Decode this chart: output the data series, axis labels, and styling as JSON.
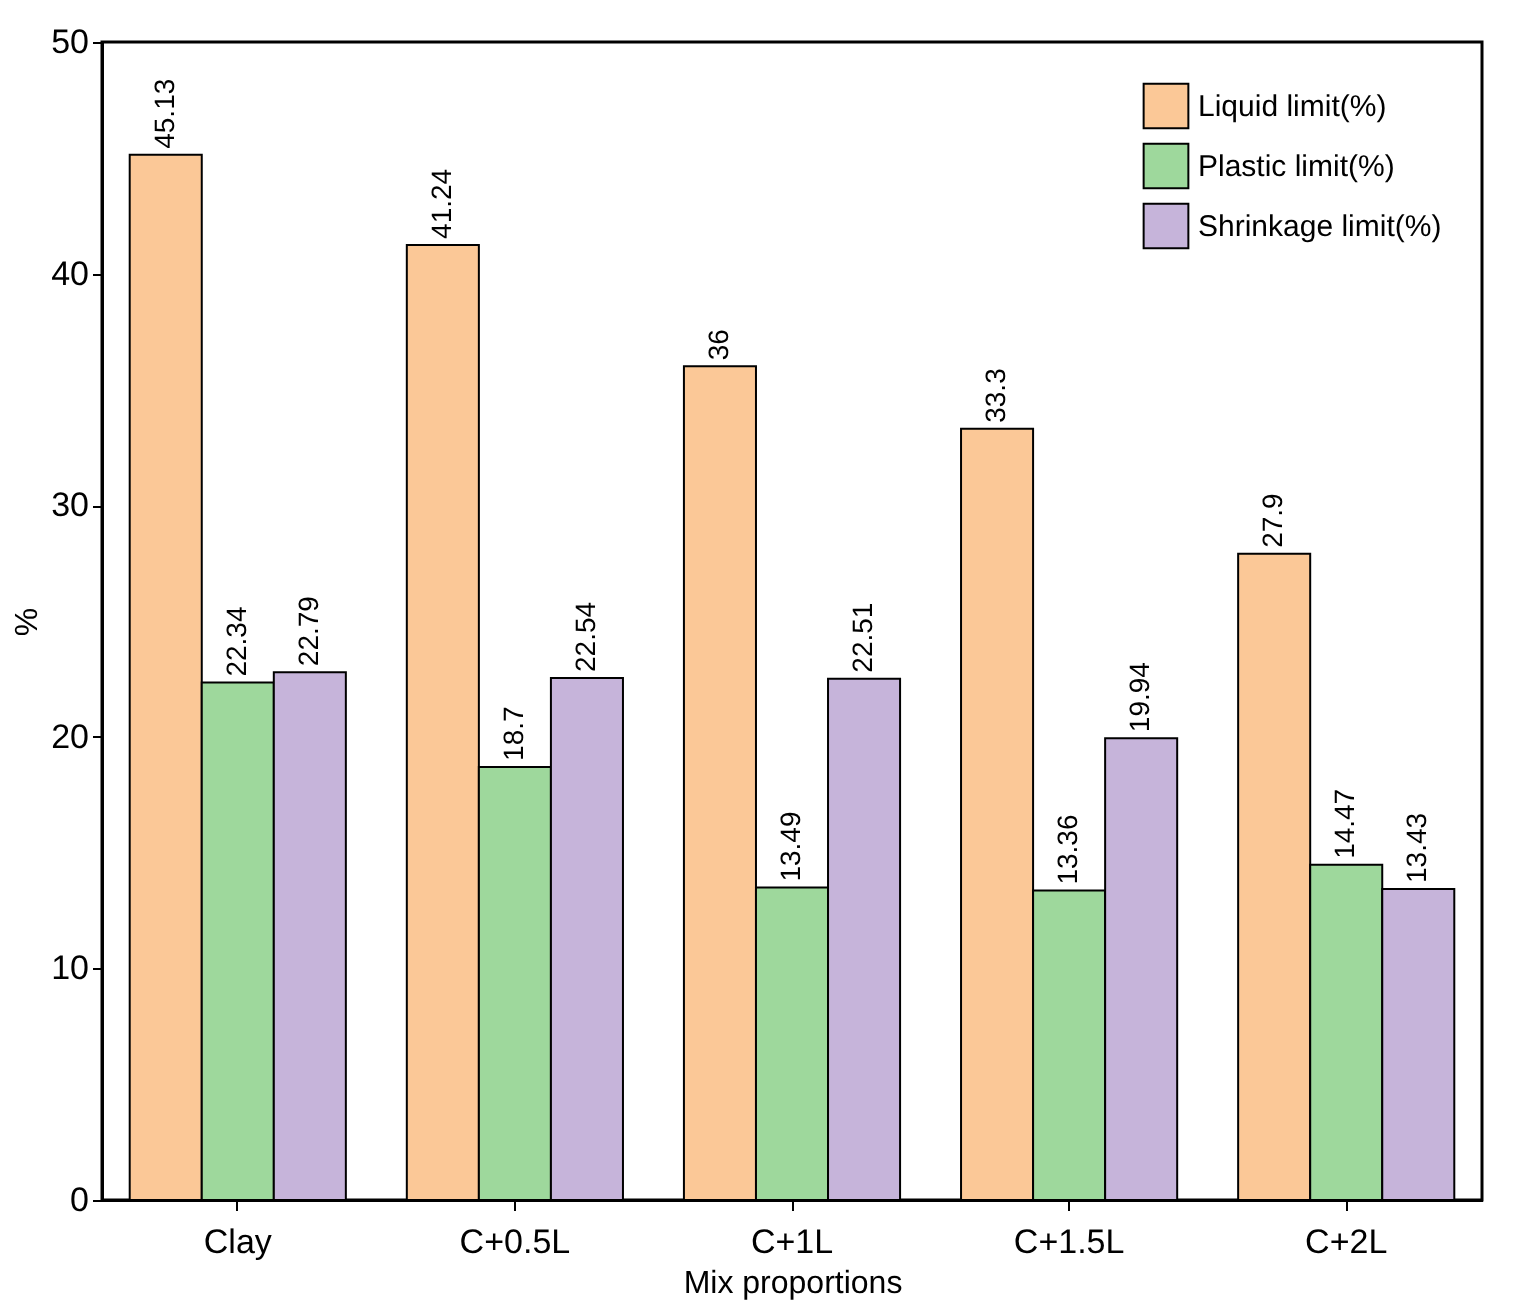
{
  "chart_data": {
    "type": "bar",
    "xlabel": "Mix proportions",
    "ylabel": "%",
    "categories": [
      "Clay",
      "C+0.5L",
      "C+1L",
      "C+1.5L",
      "C+2L"
    ],
    "series": [
      {
        "name": "Liquid limit(%)",
        "color": "#fbc897",
        "values": [
          45.13,
          41.24,
          36,
          33.3,
          27.9
        ]
      },
      {
        "name": "Plastic limit(%)",
        "color": "#9ed89c",
        "values": [
          22.34,
          18.7,
          13.49,
          13.36,
          14.47
        ]
      },
      {
        "name": "Shrinkage limit(%)",
        "color": "#c6b4da",
        "values": [
          22.79,
          22.54,
          22.51,
          19.94,
          13.43
        ]
      }
    ],
    "ylim": [
      0,
      50
    ],
    "yticks": [
      0,
      10,
      20,
      30,
      40,
      50
    ],
    "grid": false,
    "legend": "top right",
    "data_labels": true
  }
}
